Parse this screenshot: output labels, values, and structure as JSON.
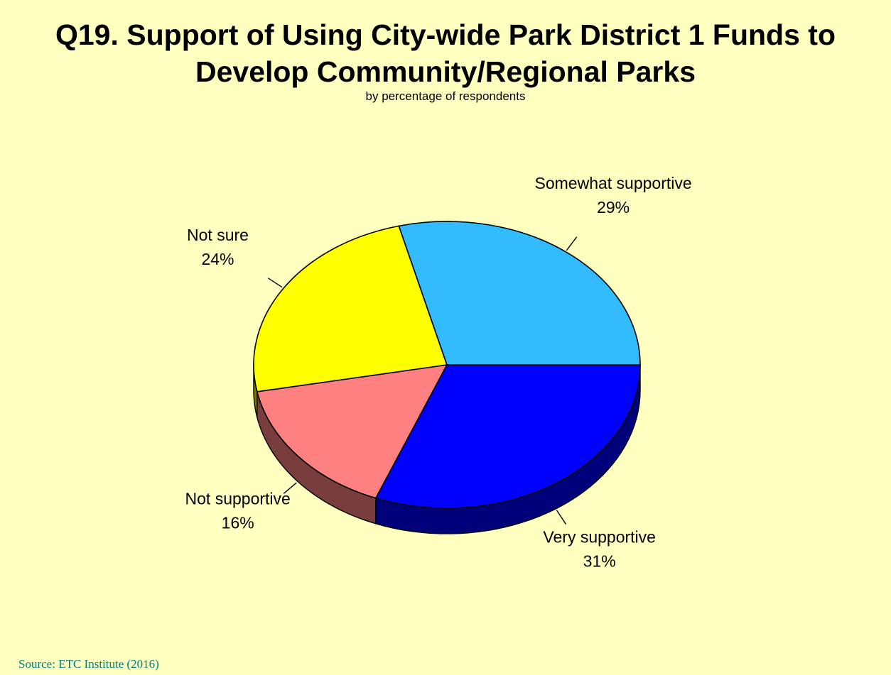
{
  "colors": {
    "background": "#ffffc0",
    "source_text": "#008080"
  },
  "chart_data": {
    "type": "pie",
    "three_d": true,
    "title_lines": [
      "Q19. Support of Using City-wide Park District 1 Funds to",
      "Develop Community/Regional Parks"
    ],
    "subtitle": "by percentage of respondents",
    "unit": "%",
    "legend": "none",
    "slices": [
      {
        "label": "Very supportive",
        "value": 31,
        "display": "31%",
        "color": "#0000ff",
        "side_color": "#00007a"
      },
      {
        "label": "Not supportive",
        "value": 16,
        "display": "16%",
        "color": "#ff8080",
        "side_color": "#7a3d3d"
      },
      {
        "label": "Not sure",
        "value": 24,
        "display": "24%",
        "color": "#ffff00",
        "side_color": "#7a7a00"
      },
      {
        "label": "Somewhat supportive",
        "value": 29,
        "display": "29%",
        "color": "#33bbff",
        "side_color": "#1a5a7a"
      }
    ]
  },
  "source": {
    "text": "Source:  ETC Institute (2016)"
  }
}
